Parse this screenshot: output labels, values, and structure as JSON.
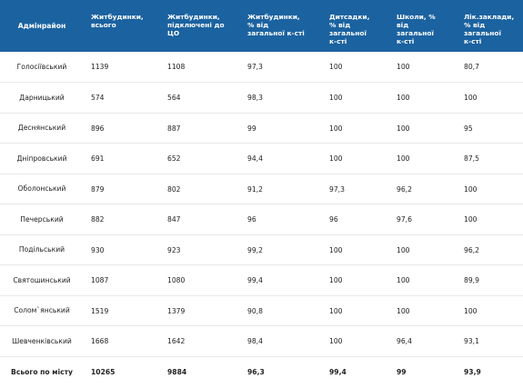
{
  "headers": [
    "Адмінрайон",
    "Житбудинки,\nвсього",
    "Житбудинки,\nпідключені до\nЦО",
    "Житбудинки,\n% від\nзагальної к-сті",
    "Дитсадки,\n% від\nзагальної\nк-сті",
    "Школи, %\nвід\nзагальної\nк-сті",
    "Лік.заклади,\n% від\nзагальної\nк-сті"
  ],
  "rows": [
    [
      "Голосіївський",
      "1139",
      "1108",
      "97,3",
      "100",
      "100",
      "80,7"
    ],
    [
      "Дарницький",
      "574",
      "564",
      "98,3",
      "100",
      "100",
      "100"
    ],
    [
      "Деснянський",
      "896",
      "887",
      "99",
      "100",
      "100",
      "95"
    ],
    [
      "Дніпровський",
      "691",
      "652",
      "94,4",
      "100",
      "100",
      "87,5"
    ],
    [
      "Оболонський",
      "879",
      "802",
      "91,2",
      "97,3",
      "96,2",
      "100"
    ],
    [
      "Печерський",
      "882",
      "847",
      "96",
      "96",
      "97,6",
      "100"
    ],
    [
      "Подільський",
      "930",
      "923",
      "99,2",
      "100",
      "100",
      "96,2"
    ],
    [
      "Святошинський",
      "1087",
      "1080",
      "99,4",
      "100",
      "100",
      "89,9"
    ],
    [
      "Солом`янський",
      "1519",
      "1379",
      "90,8",
      "100",
      "100",
      "100"
    ],
    [
      "Шевченківський",
      "1668",
      "1642",
      "98,4",
      "100",
      "96,4",
      "93,1"
    ]
  ],
  "total": [
    "Всього по місту",
    "10265",
    "9884",
    "96,3",
    "99,4",
    "99",
    "93,9"
  ]
}
